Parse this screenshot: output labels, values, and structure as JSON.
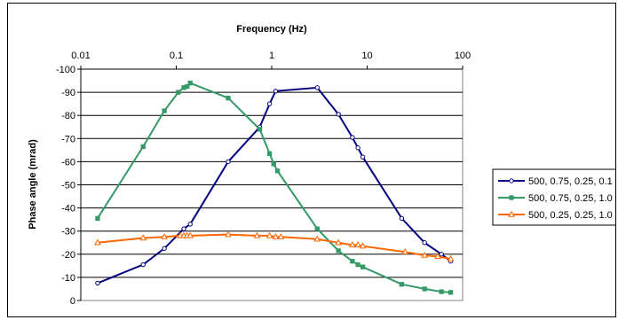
{
  "chart_data": {
    "type": "line",
    "xlabel": "Frequency (Hz)",
    "ylabel": "Phase angle (mrad)",
    "x_scale": "log",
    "xlim": [
      0.01,
      100
    ],
    "ylim": [
      0,
      -100
    ],
    "x_tick_labels": [
      "0.01",
      "0.1",
      "1",
      "10",
      "100"
    ],
    "y_tick_labels": [
      "0",
      "-10",
      "-20",
      "-30",
      "-40",
      "-50",
      "-60",
      "-70",
      "-80",
      "-90",
      "-100"
    ],
    "x_axis_position": "top",
    "grid": "horizontal",
    "legend_position": "right",
    "series": [
      {
        "name": "500, 0.75, 0.25, 0.1",
        "color": "#000080",
        "marker": "circle",
        "x": [
          0.015,
          0.045,
          0.075,
          0.12,
          0.14,
          0.35,
          0.75,
          0.95,
          1.1,
          3.0,
          5.0,
          7.0,
          8.0,
          9.0,
          23,
          40,
          60,
          75
        ],
        "y": [
          -7.5,
          -15.5,
          -22.5,
          -31,
          -33,
          -60,
          -75,
          -85,
          -90.5,
          -92,
          -80.5,
          -70.5,
          -66,
          -62,
          -35.5,
          -25,
          -20,
          -17
        ]
      },
      {
        "name": "500, 0.75, 0.25, 1.0",
        "color": "#339966",
        "marker": "square",
        "x": [
          0.015,
          0.045,
          0.075,
          0.105,
          0.12,
          0.13,
          0.14,
          0.35,
          0.75,
          0.95,
          1.05,
          1.15,
          3.0,
          5.0,
          7.0,
          8.0,
          9.0,
          23,
          40,
          60,
          75
        ],
        "y": [
          -35.5,
          -66.5,
          -82,
          -90,
          -92,
          -92.5,
          -94,
          -87.5,
          -74,
          -63.5,
          -59,
          -56,
          -31,
          -21.5,
          -17,
          -15.5,
          -14.5,
          -7,
          -5,
          -3.8,
          -3.5
        ]
      },
      {
        "name": "500, 0.25, 0.25, 1.0",
        "color": "#FF6600",
        "marker": "triangle",
        "x": [
          0.015,
          0.045,
          0.075,
          0.11,
          0.12,
          0.13,
          0.14,
          0.35,
          0.7,
          0.95,
          1.1,
          1.25,
          3.0,
          5.0,
          7.0,
          8.0,
          9.0,
          25,
          40,
          55,
          75
        ],
        "y": [
          -25,
          -27,
          -27.5,
          -28,
          -28,
          -28,
          -28,
          -28.5,
          -28,
          -28,
          -27.5,
          -27.5,
          -26.5,
          -25,
          -24,
          -24,
          -23.5,
          -21,
          -19.5,
          -19,
          -18
        ]
      }
    ]
  }
}
